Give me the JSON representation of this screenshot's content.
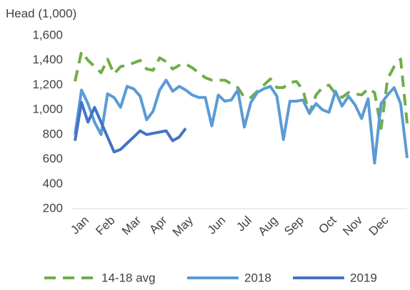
{
  "chart_data": {
    "type": "line",
    "y_label": "Head (1,000)",
    "categories": [
      null,
      "Jan",
      null,
      null,
      null,
      "Feb",
      null,
      null,
      null,
      "Mar",
      null,
      null,
      null,
      "Apr",
      null,
      null,
      null,
      "May",
      null,
      null,
      null,
      null,
      "Jun",
      null,
      null,
      null,
      "Jul",
      null,
      null,
      null,
      "Aug",
      null,
      null,
      null,
      "Sep",
      null,
      null,
      null,
      null,
      "Oct",
      null,
      null,
      null,
      "Nov",
      null,
      null,
      null,
      "Dec",
      null,
      null,
      null,
      null
    ],
    "series": [
      {
        "name": "14-18 avg",
        "color": "#70ad47",
        "dashed": true,
        "values": [
          1230,
          1470,
          1400,
          1350,
          1300,
          1410,
          1290,
          1350,
          1360,
          1380,
          1400,
          1330,
          1320,
          1420,
          1390,
          1330,
          1360,
          1370,
          1340,
          1300,
          1260,
          1240,
          1240,
          1240,
          1210,
          1180,
          1100,
          1100,
          1150,
          1200,
          1250,
          1180,
          1180,
          1220,
          1230,
          1160,
          970,
          1120,
          1180,
          1200,
          1130,
          1100,
          1140,
          1130,
          1120,
          1170,
          1140,
          850,
          1250,
          1350,
          1410,
          890
        ]
      },
      {
        "name": "2018",
        "color": "#5b9bd5",
        "values": [
          800,
          1160,
          1050,
          900,
          800,
          1130,
          1100,
          1020,
          1190,
          1170,
          1110,
          920,
          990,
          1160,
          1240,
          1150,
          1190,
          1160,
          1120,
          1100,
          1100,
          870,
          1120,
          1070,
          1080,
          1160,
          860,
          1060,
          1140,
          1170,
          1190,
          1110,
          760,
          1070,
          1070,
          1080,
          970,
          1050,
          1000,
          980,
          1150,
          1030,
          1110,
          1040,
          930,
          1090,
          570,
          1050,
          1120,
          1180,
          1050,
          610
        ]
      },
      {
        "name": "2019",
        "color": "#4472c4",
        "values": [
          750,
          1060,
          900,
          1020,
          900,
          780,
          660,
          680,
          730,
          780,
          830,
          800,
          810,
          820,
          830,
          750,
          780,
          850,
          null,
          null,
          null,
          null,
          null,
          null,
          null,
          null,
          null,
          null,
          null,
          null,
          null,
          null,
          null,
          null,
          null,
          null,
          null,
          null,
          null,
          null,
          null,
          null,
          null,
          null,
          null,
          null,
          null,
          null,
          null,
          null,
          null,
          null
        ]
      }
    ],
    "ylim": [
      200,
      1600
    ],
    "yticks": [
      200,
      400,
      600,
      800,
      {
        "value": 1000,
        "label": "1,000"
      },
      {
        "value": 1200,
        "label": "1,200"
      },
      {
        "value": 1400,
        "label": "1,400"
      },
      {
        "value": 1600,
        "label": "1,600"
      }
    ],
    "grid": false,
    "legend": "bottom"
  }
}
